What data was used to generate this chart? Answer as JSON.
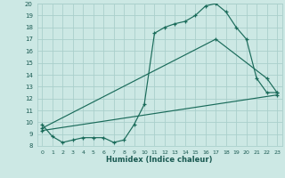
{
  "xlabel": "Humidex (Indice chaleur)",
  "bg_color": "#cce8e4",
  "grid_color": "#aacfcb",
  "line_color": "#1a6b5a",
  "xlim": [
    -0.5,
    23.5
  ],
  "ylim": [
    8,
    20
  ],
  "xticks": [
    0,
    1,
    2,
    3,
    4,
    5,
    6,
    7,
    8,
    9,
    10,
    11,
    12,
    13,
    14,
    15,
    16,
    17,
    18,
    19,
    20,
    21,
    22,
    23
  ],
  "yticks": [
    8,
    9,
    10,
    11,
    12,
    13,
    14,
    15,
    16,
    17,
    18,
    19,
    20
  ],
  "curve1_x": [
    0,
    1,
    2,
    3,
    4,
    5,
    6,
    7,
    8,
    9,
    10,
    11,
    12,
    13,
    14,
    15,
    16,
    17,
    18,
    19,
    20,
    21,
    22,
    23
  ],
  "curve1_y": [
    9.8,
    8.8,
    8.3,
    8.5,
    8.7,
    8.7,
    8.7,
    8.3,
    8.5,
    9.8,
    11.5,
    17.5,
    18.0,
    18.3,
    18.5,
    19.0,
    19.8,
    20.0,
    19.3,
    18.0,
    17.0,
    13.7,
    12.5,
    12.5
  ],
  "curve2_x": [
    0,
    17,
    22,
    23
  ],
  "curve2_y": [
    9.5,
    17.0,
    13.7,
    12.5
  ],
  "curve3_x": [
    0,
    23
  ],
  "curve3_y": [
    9.3,
    12.3
  ]
}
